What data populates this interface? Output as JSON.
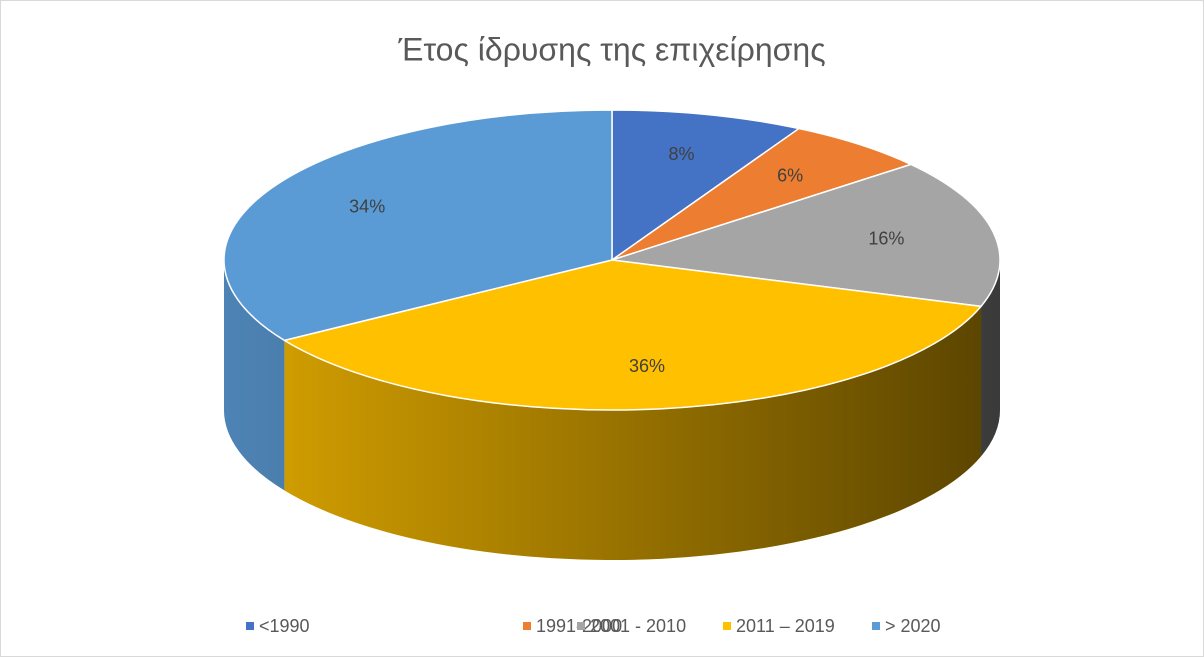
{
  "chart_data": {
    "type": "pie3d",
    "title": "Έτος ίδρυσης της επιχείρησης",
    "categories": [
      "<1990",
      "1991-2000",
      "2001 - 2010",
      "2011 – 2019",
      "> 2020"
    ],
    "values": [
      8,
      6,
      16,
      36,
      34
    ],
    "value_labels": [
      "8%",
      "6%",
      "16%",
      "36%",
      "34%"
    ],
    "colors": [
      "#4472c4",
      "#ed7d31",
      "#a5a5a5",
      "#ffc000",
      "#5b9bd5"
    ],
    "legend": "bottom"
  }
}
